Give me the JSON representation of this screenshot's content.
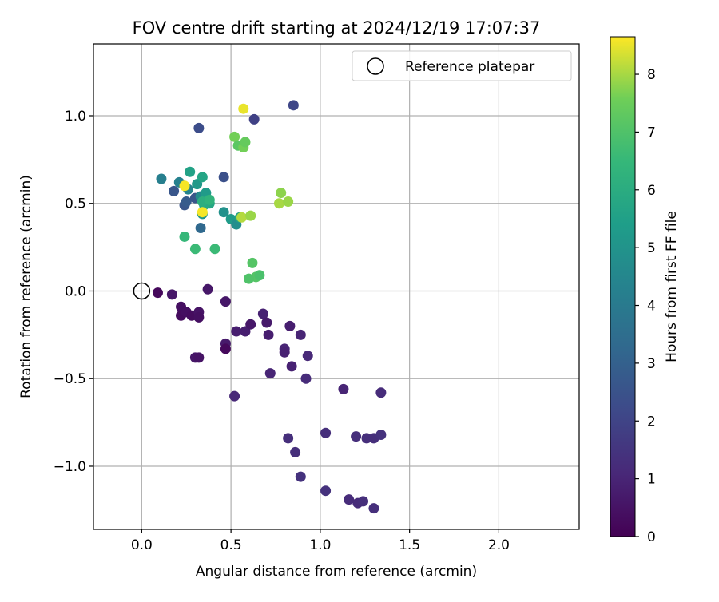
{
  "chart_data": {
    "type": "scatter",
    "title": "FOV centre drift starting at 2024/12/19 17:07:37",
    "xlabel": "Angular distance from reference (arcmin)",
    "ylabel": "Rotation from reference (arcmin)",
    "xlim": [
      -0.27,
      2.45
    ],
    "ylim": [
      -1.36,
      1.41
    ],
    "x_ticks": [
      0.0,
      0.5,
      1.0,
      1.5,
      2.0
    ],
    "x_tick_labels": [
      "0.0",
      "0.5",
      "1.0",
      "1.5",
      "2.0"
    ],
    "y_ticks": [
      -1.0,
      -0.5,
      0.0,
      0.5,
      1.0
    ],
    "y_tick_labels": [
      "−1.0",
      "−0.5",
      "0.0",
      "0.5",
      "1.0"
    ],
    "grid": true,
    "legend": {
      "position": "top-right",
      "entries": [
        "Reference platepar"
      ]
    },
    "reference_point": {
      "name": "Reference platepar",
      "x": 0.0,
      "y": 0.0,
      "marker": "hollow-circle"
    },
    "colorbar": {
      "label": "Hours from first FF file",
      "range": [
        0,
        8.65
      ],
      "ticks": [
        0,
        1,
        2,
        3,
        4,
        5,
        6,
        7,
        8
      ],
      "tick_labels": [
        "0",
        "1",
        "2",
        "3",
        "4",
        "5",
        "6",
        "7",
        "8"
      ],
      "colormap": "viridis"
    },
    "points": [
      {
        "x": 0.09,
        "y": -0.01,
        "h": 0.2
      },
      {
        "x": 0.17,
        "y": -0.02,
        "h": 0.6
      },
      {
        "x": 0.37,
        "y": 0.01,
        "h": 0.6
      },
      {
        "x": 0.22,
        "y": -0.09,
        "h": 0.4
      },
      {
        "x": 0.22,
        "y": -0.14,
        "h": 0.3
      },
      {
        "x": 0.25,
        "y": -0.12,
        "h": 0.4
      },
      {
        "x": 0.28,
        "y": -0.14,
        "h": 0.3
      },
      {
        "x": 0.32,
        "y": -0.12,
        "h": 0.5
      },
      {
        "x": 0.32,
        "y": -0.15,
        "h": 0.4
      },
      {
        "x": 0.3,
        "y": -0.38,
        "h": 0.6
      },
      {
        "x": 0.32,
        "y": -0.38,
        "h": 0.5
      },
      {
        "x": 0.47,
        "y": -0.06,
        "h": 0.6
      },
      {
        "x": 0.47,
        "y": -0.3,
        "h": 0.7
      },
      {
        "x": 0.47,
        "y": -0.33,
        "h": 0.2
      },
      {
        "x": 0.52,
        "y": -0.6,
        "h": 1.1
      },
      {
        "x": 0.53,
        "y": -0.23,
        "h": 0.8
      },
      {
        "x": 0.58,
        "y": -0.23,
        "h": 0.8
      },
      {
        "x": 0.61,
        "y": -0.19,
        "h": 0.6
      },
      {
        "x": 0.68,
        "y": -0.13,
        "h": 0.9
      },
      {
        "x": 0.7,
        "y": -0.18,
        "h": 0.7
      },
      {
        "x": 0.71,
        "y": -0.25,
        "h": 0.8
      },
      {
        "x": 0.72,
        "y": -0.47,
        "h": 1.0
      },
      {
        "x": 0.8,
        "y": -0.33,
        "h": 1.0
      },
      {
        "x": 0.8,
        "y": -0.35,
        "h": 0.9
      },
      {
        "x": 0.83,
        "y": -0.2,
        "h": 0.8
      },
      {
        "x": 0.84,
        "y": -0.43,
        "h": 0.9
      },
      {
        "x": 0.89,
        "y": -0.25,
        "h": 1.0
      },
      {
        "x": 0.93,
        "y": -0.37,
        "h": 1.1
      },
      {
        "x": 0.92,
        "y": -0.5,
        "h": 1.2
      },
      {
        "x": 0.82,
        "y": -0.84,
        "h": 1.3
      },
      {
        "x": 0.86,
        "y": -0.92,
        "h": 1.3
      },
      {
        "x": 0.89,
        "y": -1.06,
        "h": 1.4
      },
      {
        "x": 1.03,
        "y": -0.81,
        "h": 1.3
      },
      {
        "x": 1.03,
        "y": -1.14,
        "h": 1.4
      },
      {
        "x": 1.13,
        "y": -0.56,
        "h": 1.0
      },
      {
        "x": 1.16,
        "y": -1.19,
        "h": 1.2
      },
      {
        "x": 1.2,
        "y": -0.83,
        "h": 1.3
      },
      {
        "x": 1.21,
        "y": -1.21,
        "h": 1.2
      },
      {
        "x": 1.24,
        "y": -1.2,
        "h": 1.3
      },
      {
        "x": 1.26,
        "y": -0.84,
        "h": 1.3
      },
      {
        "x": 1.3,
        "y": -0.84,
        "h": 1.3
      },
      {
        "x": 1.3,
        "y": -1.24,
        "h": 1.3
      },
      {
        "x": 1.34,
        "y": -0.82,
        "h": 1.4
      },
      {
        "x": 1.34,
        "y": -0.58,
        "h": 1.2
      },
      {
        "x": 0.32,
        "y": 0.93,
        "h": 2.3
      },
      {
        "x": 0.85,
        "y": 1.06,
        "h": 2.1
      },
      {
        "x": 0.63,
        "y": 0.98,
        "h": 1.9
      },
      {
        "x": 0.46,
        "y": 0.65,
        "h": 2.4
      },
      {
        "x": 0.18,
        "y": 0.57,
        "h": 2.6
      },
      {
        "x": 0.24,
        "y": 0.49,
        "h": 2.6
      },
      {
        "x": 0.25,
        "y": 0.51,
        "h": 2.8
      },
      {
        "x": 0.3,
        "y": 0.53,
        "h": 2.6
      },
      {
        "x": 0.33,
        "y": 0.36,
        "h": 3.3
      },
      {
        "x": 0.11,
        "y": 0.64,
        "h": 4.2
      },
      {
        "x": 0.21,
        "y": 0.62,
        "h": 4.3
      },
      {
        "x": 0.26,
        "y": 0.58,
        "h": 4.4
      },
      {
        "x": 0.31,
        "y": 0.61,
        "h": 5.2
      },
      {
        "x": 0.27,
        "y": 0.68,
        "h": 5.6
      },
      {
        "x": 0.34,
        "y": 0.65,
        "h": 5.7
      },
      {
        "x": 0.33,
        "y": 0.54,
        "h": 4.7
      },
      {
        "x": 0.36,
        "y": 0.56,
        "h": 5.3
      },
      {
        "x": 0.37,
        "y": 0.52,
        "h": 5.5
      },
      {
        "x": 0.38,
        "y": 0.5,
        "h": 5.8
      },
      {
        "x": 0.35,
        "y": 0.49,
        "h": 5.9
      },
      {
        "x": 0.34,
        "y": 0.51,
        "h": 6.1
      },
      {
        "x": 0.38,
        "y": 0.52,
        "h": 6.3
      },
      {
        "x": 0.34,
        "y": 0.44,
        "h": 5.1
      },
      {
        "x": 0.46,
        "y": 0.45,
        "h": 4.9
      },
      {
        "x": 0.5,
        "y": 0.41,
        "h": 5.3
      },
      {
        "x": 0.53,
        "y": 0.38,
        "h": 4.8
      },
      {
        "x": 0.55,
        "y": 0.42,
        "h": 5.6
      },
      {
        "x": 0.24,
        "y": 0.31,
        "h": 6.5
      },
      {
        "x": 0.3,
        "y": 0.24,
        "h": 6.6
      },
      {
        "x": 0.41,
        "y": 0.24,
        "h": 6.6
      },
      {
        "x": 0.62,
        "y": 0.16,
        "h": 7.1
      },
      {
        "x": 0.64,
        "y": 0.08,
        "h": 7.1
      },
      {
        "x": 0.66,
        "y": 0.09,
        "h": 6.9
      },
      {
        "x": 0.6,
        "y": 0.07,
        "h": 7.0
      },
      {
        "x": 0.52,
        "y": 0.88,
        "h": 7.6
      },
      {
        "x": 0.54,
        "y": 0.83,
        "h": 7.2
      },
      {
        "x": 0.57,
        "y": 0.82,
        "h": 7.6
      },
      {
        "x": 0.58,
        "y": 0.85,
        "h": 7.4
      },
      {
        "x": 0.56,
        "y": 0.42,
        "h": 8.1
      },
      {
        "x": 0.61,
        "y": 0.43,
        "h": 7.9
      },
      {
        "x": 0.78,
        "y": 0.56,
        "h": 7.8
      },
      {
        "x": 0.77,
        "y": 0.5,
        "h": 8.0
      },
      {
        "x": 0.82,
        "y": 0.51,
        "h": 7.9
      },
      {
        "x": 0.57,
        "y": 1.04,
        "h": 8.5
      },
      {
        "x": 0.24,
        "y": 0.6,
        "h": 8.6
      },
      {
        "x": 0.34,
        "y": 0.45,
        "h": 8.6
      }
    ]
  }
}
